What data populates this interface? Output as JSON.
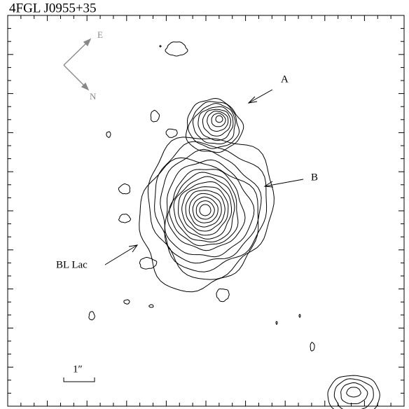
{
  "title": "4FGL J0955+35",
  "compass": {
    "east": "E",
    "north": "N"
  },
  "labels": {
    "a": "A",
    "b": "B",
    "bl_lac": "BL Lac"
  },
  "scale_bar": "1″"
}
